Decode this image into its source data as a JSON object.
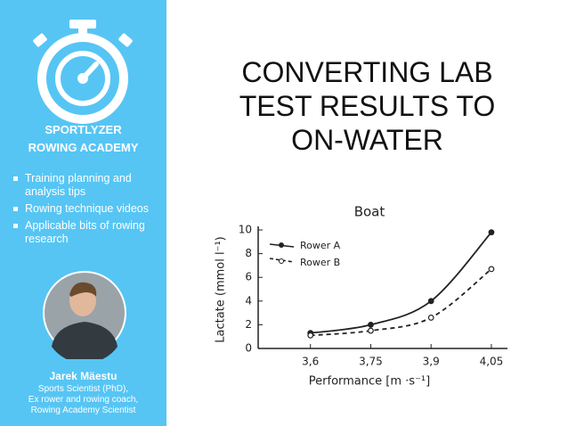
{
  "sidebar": {
    "brand": [
      "SPORTLYZER",
      "ROWING ACADEMY"
    ],
    "bullets": [
      "Training planning and analysis tips",
      "Rowing technique videos",
      "Applicable bits of rowing research"
    ],
    "author": {
      "name": "Jarek Mäestu",
      "lines": [
        "Sports Scientist (PhD),",
        "Ex rower and rowing coach,",
        "Rowing Academy Scientist"
      ]
    }
  },
  "title": [
    "CONVERTING LAB",
    "TEST RESULTS TO",
    "ON-WATER"
  ],
  "chart_data": {
    "type": "line",
    "title": "Boat",
    "x_label": "Performance [m ·s⁻¹]",
    "y_label": "Lactate (mmol l⁻¹)",
    "x": [
      3.6,
      3.75,
      3.9,
      4.05
    ],
    "series": [
      {
        "name": "Rower A",
        "color": "#222222",
        "dashed": false,
        "values": [
          1.3,
          2.0,
          4.0,
          9.8
        ]
      },
      {
        "name": "Rower B",
        "color": "#222222",
        "dashed": true,
        "values": [
          1.1,
          1.5,
          2.6,
          6.7
        ]
      }
    ],
    "xlim": [
      3.47,
      4.09
    ],
    "xticks": [
      {
        "value": 3.6,
        "label": "3,6"
      },
      {
        "value": 3.75,
        "label": "3,75"
      },
      {
        "value": 3.9,
        "label": "3,9"
      },
      {
        "value": 4.05,
        "label": "4,05"
      }
    ],
    "ylim": [
      0,
      10
    ],
    "yticks": [
      0,
      2,
      4,
      6,
      8,
      10
    ],
    "legend": "top-left"
  }
}
